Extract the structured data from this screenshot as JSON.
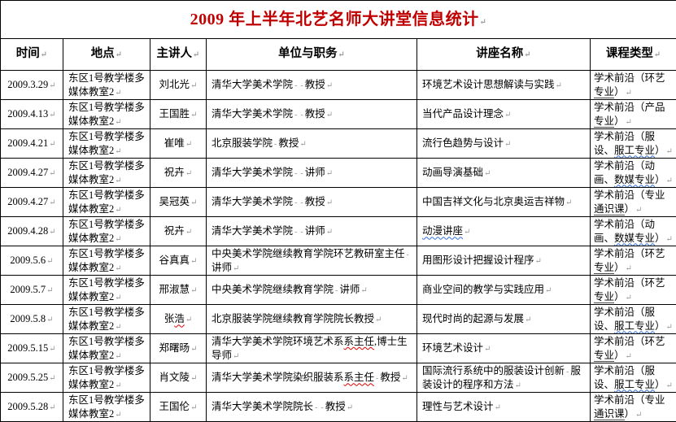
{
  "title": {
    "text": "2009 年上半年北艺名师大讲堂信息统计"
  },
  "formatting_marks": {
    "cell_end": "↵",
    "space_mark": "‐"
  },
  "colors": {
    "title": "#c00000",
    "mark": "#9a9a9a",
    "wavy_blue": "#2f6fe0",
    "wavy_red": "#e00000",
    "underline": "#4a4a4a",
    "grid": "#000000"
  },
  "table": {
    "headers": [
      "时间",
      "地点",
      "主讲人",
      "单位与职务",
      "讲座名称",
      "课程类型"
    ],
    "rows": [
      {
        "date": "2009.3.29",
        "location": "东区1号教学楼多媒体教室2",
        "speaker": "刘北光",
        "unit": "清华大学美术学院{sp}{sp}教授",
        "lecture": "环境艺术设计思想解读与实践",
        "course": "学术前沿（环艺{u:专业}）"
      },
      {
        "date": "2009.4.13",
        "location": "东区1号教学楼多媒体教室2",
        "speaker": "王国胜",
        "unit": "清华大学美术学院{sp}{sp}教授",
        "lecture": "当代产品设计理念",
        "course": "学术前沿（产品{u:专业}）"
      },
      {
        "date": "2009.4.21",
        "location": "东区1号教学楼多媒体教室2",
        "speaker": "崔唯",
        "unit": "北京服装学院{sp}教授",
        "lecture": "流行色趋势与设计",
        "course": "学术前沿（服设、{b:服工专业}）"
      },
      {
        "date": "2009.4.27",
        "location": "东区1号教学楼多媒体教室2",
        "speaker": "祝卉",
        "unit": "清华大学美术学院{sp}{sp}讲师",
        "lecture": "动画导演基础",
        "course": "学术前沿（动画、{b:数媒专业}）"
      },
      {
        "date": "2009.4.27",
        "location": "东区1号教学楼多媒体教室2",
        "speaker": "吴冠英",
        "unit": "清华大学美术学院{sp}{sp}教授",
        "lecture": "中国吉祥文化与北京奥运吉祥物",
        "course": "学术前沿（专业{u:通识课}）"
      },
      {
        "date": "2009.4.28",
        "location": "东区1号教学楼多媒体教室2",
        "speaker": "祝卉",
        "unit": "清华大学美术学院{sp}{sp}讲师",
        "lecture": "{b:动漫讲座}",
        "course": "学术前沿（动画、{b:数媒专业}）"
      },
      {
        "date": "2009.5.6",
        "location": "东区1号教学楼多媒体教室2",
        "speaker": "谷真真",
        "unit": "中央美术学院继续教育学院环艺教研室主任{sp}讲师",
        "lecture": "用图形设计把握设计程序",
        "course": "学术前沿（环艺{u:专业}）"
      },
      {
        "date": "2009.5.7",
        "location": "东区1号教学楼多媒体教室2",
        "speaker": "邢淑慧",
        "unit": "中央美术学院继续教育学院{sp}讲师",
        "lecture": "商业空间的教学与实践应用",
        "course": "学术前沿（环艺{u:专业}）"
      },
      {
        "date": "2009.5.8",
        "location": "东区1号教学楼多媒体教室2",
        "speaker": "张{r:浩}",
        "unit": "北京服装学院继续教育学院院长教授",
        "lecture": "现代时尚的起源与发展",
        "course": "学术前沿（服设、{b:服工专业}）"
      },
      {
        "date": "2009.5.15",
        "location": "东区1号教学楼多媒体教室2",
        "speaker": "郑曙旸",
        "unit": "清华大学美术学院环境艺术系{r:系主任},博士生导师",
        "lecture": "环境艺术设计",
        "course": "学术前沿（环艺{u:专业}）"
      },
      {
        "date": "2009.5.25",
        "location": "东区1号教学楼多媒体教室2",
        "speaker": "肖文陵",
        "unit": "清华大学美术学院染织服装系{r:系主任}{sp}教授",
        "lecture": "国际流行系统中的服装设计创新{sp}服装设计的程序和方法",
        "course": "学术前沿（服设、{b:服工专业}）"
      },
      {
        "date": "2009.5.28",
        "location": "东区1号教学楼多媒体教室2",
        "speaker": "王国伦",
        "unit": "清华大学美术学院院长{sp}{sp}教授",
        "lecture": "理性与艺术设计",
        "course": "学术前沿（专业{u:通识课}）"
      }
    ]
  }
}
